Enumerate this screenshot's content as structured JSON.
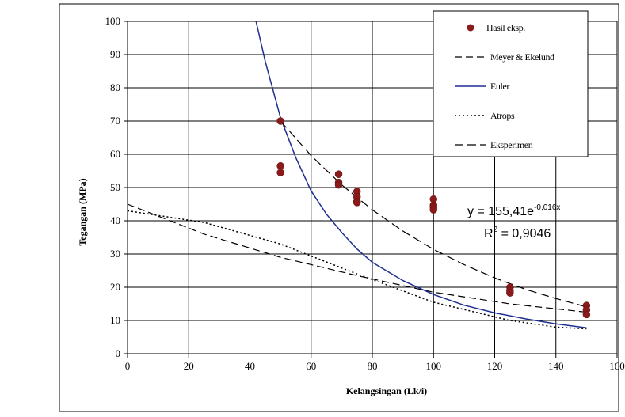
{
  "chart_data": {
    "type": "scatter",
    "xlabel": "Kelangsingan (Lk/i)",
    "ylabel": "Tegangan (MPa)",
    "xlim": [
      0,
      160
    ],
    "ylim": [
      0,
      100
    ],
    "x_ticks": [
      "0",
      "20",
      "40",
      "60",
      "80",
      "100",
      "120",
      "140",
      "160"
    ],
    "y_ticks": [
      "0",
      "10",
      "20",
      "30",
      "40",
      "50",
      "60",
      "70",
      "80",
      "90",
      "100"
    ],
    "grid": true,
    "legend_position": "top-right",
    "colors": {
      "points": "#8b1a1a",
      "euler": "#1f2f8f",
      "dashed": "#000000",
      "dotted": "#000000"
    },
    "series": [
      {
        "name": "Hasil eksp.",
        "kind": "points",
        "x": [
          50,
          50,
          50,
          69,
          69,
          69,
          75,
          75,
          75,
          75,
          100,
          100,
          100,
          100,
          125,
          125,
          125,
          150,
          150,
          150
        ],
        "y": [
          70,
          56.5,
          54.5,
          54,
          51.5,
          50.8,
          48.8,
          47.2,
          45.8,
          45.5,
          46.5,
          44.7,
          44,
          43.3,
          20,
          19,
          18.3,
          14.5,
          13.2,
          11.8
        ]
      },
      {
        "name": "Meyer & Ekelund",
        "kind": "dashed",
        "x": [
          0,
          25,
          50,
          75,
          100,
          125,
          150
        ],
        "y": [
          45,
          36,
          29,
          23.5,
          18.5,
          15,
          12.5
        ]
      },
      {
        "name": "Euler",
        "kind": "solid",
        "x": [
          42,
          45,
          50,
          55,
          60,
          65,
          70,
          75,
          80,
          90,
          100,
          110,
          120,
          130,
          140,
          150
        ],
        "y": [
          100,
          88,
          71,
          59,
          49,
          42,
          36.5,
          31.5,
          27.5,
          22,
          17.8,
          14.6,
          12.3,
          10.5,
          9,
          7.8
        ]
      },
      {
        "name": "Atrops",
        "kind": "dotted",
        "x": [
          0,
          25,
          50,
          75,
          100,
          125,
          140,
          150
        ],
        "y": [
          43,
          39.5,
          33,
          24,
          15.5,
          10,
          8,
          7.5
        ]
      },
      {
        "name": "Eksperimen",
        "kind": "longdash",
        "x": [
          50,
          60,
          70,
          80,
          90,
          100,
          110,
          120,
          130,
          140,
          150
        ],
        "y": [
          70,
          59.6,
          50.8,
          43.3,
          36.9,
          31.4,
          26.8,
          22.8,
          19.4,
          16.6,
          14.1
        ]
      }
    ],
    "annotations": {
      "equation_base": "y = 155,41e",
      "equation_exp": "-0,016x",
      "r2_prefix": "R",
      "r2_sup": "2",
      "r2_rest": " = 0,9046"
    }
  }
}
